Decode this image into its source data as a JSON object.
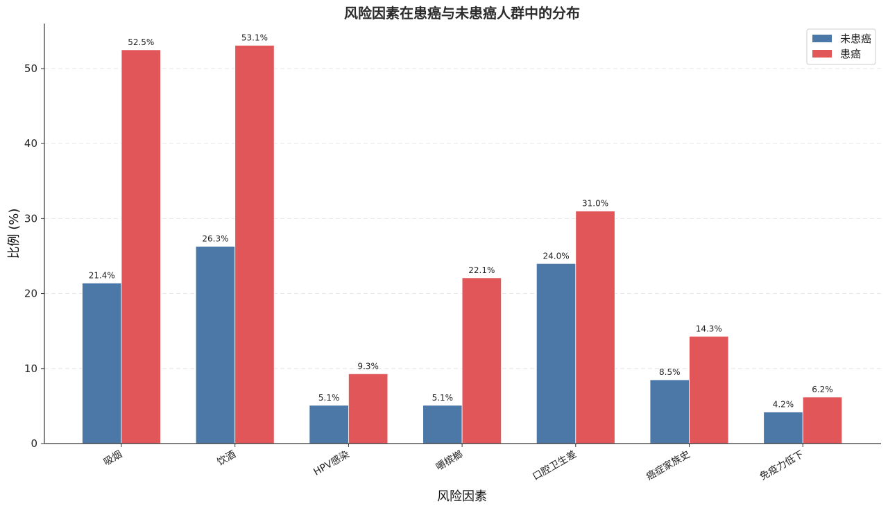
{
  "chart_data": {
    "type": "bar",
    "title": "风险因素在患癌与未患癌人群中的分布",
    "xlabel": "风险因素",
    "ylabel": "比例 (%)",
    "categories": [
      "吸烟",
      "饮酒",
      "HPV感染",
      "嚼槟榔",
      "口腔卫生差",
      "癌症家族史",
      "免疫力低下"
    ],
    "series": [
      {
        "name": "未患癌",
        "color": "#4c78a8",
        "values": [
          21.4,
          26.3,
          5.1,
          5.1,
          24.0,
          8.5,
          4.2
        ],
        "labels": [
          "21.4%",
          "26.3%",
          "5.1%",
          "5.1%",
          "24.0%",
          "8.5%",
          "4.2%"
        ]
      },
      {
        "name": "患癌",
        "color": "#e15759",
        "values": [
          52.5,
          53.1,
          9.3,
          22.1,
          31.0,
          14.3,
          6.2
        ],
        "labels": [
          "52.5%",
          "53.1%",
          "9.3%",
          "22.1%",
          "31.0%",
          "14.3%",
          "6.2%"
        ]
      }
    ],
    "yticks": [
      "0",
      "10",
      "20",
      "30",
      "40",
      "50"
    ],
    "ylim": [
      0,
      56
    ],
    "grid": "horizontal dashed",
    "legend_position": "top-right"
  }
}
